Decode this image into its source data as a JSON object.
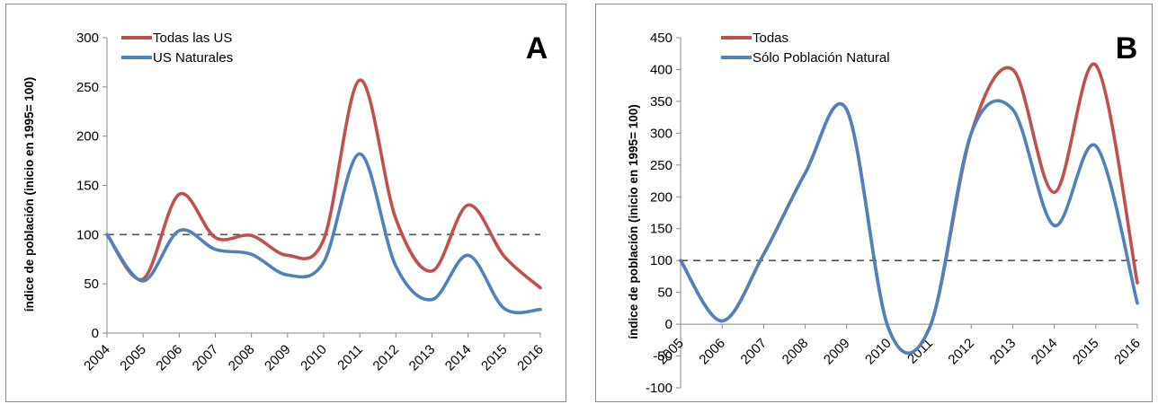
{
  "chart_data": [
    {
      "type": "line",
      "panel_label": "A",
      "title": "",
      "xlabel": "",
      "ylabel": "índice de población (inicio en 1995= 100)",
      "x": [
        "2004",
        "2005",
        "2006",
        "2007",
        "2008",
        "2009",
        "2010",
        "2011",
        "2012",
        "2013",
        "2014",
        "2015",
        "2016"
      ],
      "ylim": [
        0,
        300
      ],
      "yticks": [
        0,
        50,
        100,
        150,
        200,
        250,
        300
      ],
      "grid": false,
      "legend": "top-left",
      "reference_line": 100,
      "series": [
        {
          "name": "Todas las US",
          "color": "#c0504d",
          "values": [
            100,
            55,
            141,
            97,
            99,
            79,
            95,
            257,
            116,
            63,
            130,
            78,
            46
          ]
        },
        {
          "name": "US Naturales",
          "color": "#4f81bd",
          "values": [
            100,
            53,
            104,
            85,
            80,
            59,
            72,
            182,
            68,
            34,
            79,
            25,
            24
          ]
        }
      ]
    },
    {
      "type": "line",
      "panel_label": "B",
      "title": "",
      "xlabel": "",
      "ylabel": "índice de población (inicio en 1995= 100)",
      "x": [
        "2005",
        "2006",
        "2007",
        "2008",
        "2009",
        "2010",
        "2011",
        "2012",
        "2013",
        "2014",
        "2015",
        "2016"
      ],
      "ylim": [
        -100,
        450
      ],
      "yticks": [
        -100,
        -50,
        0,
        50,
        100,
        150,
        200,
        250,
        300,
        350,
        400,
        450
      ],
      "grid": false,
      "legend": "top-left",
      "reference_line": 100,
      "series": [
        {
          "name": "Todas",
          "color": "#c0504d",
          "values": [
            100,
            5,
            110,
            237,
            337,
            -5,
            -5,
            300,
            400,
            207,
            407,
            65
          ]
        },
        {
          "name": "Sólo Población Natural",
          "color": "#4f81bd",
          "values": [
            100,
            5,
            110,
            237,
            337,
            -5,
            -5,
            300,
            337,
            155,
            280,
            33
          ]
        }
      ]
    }
  ]
}
